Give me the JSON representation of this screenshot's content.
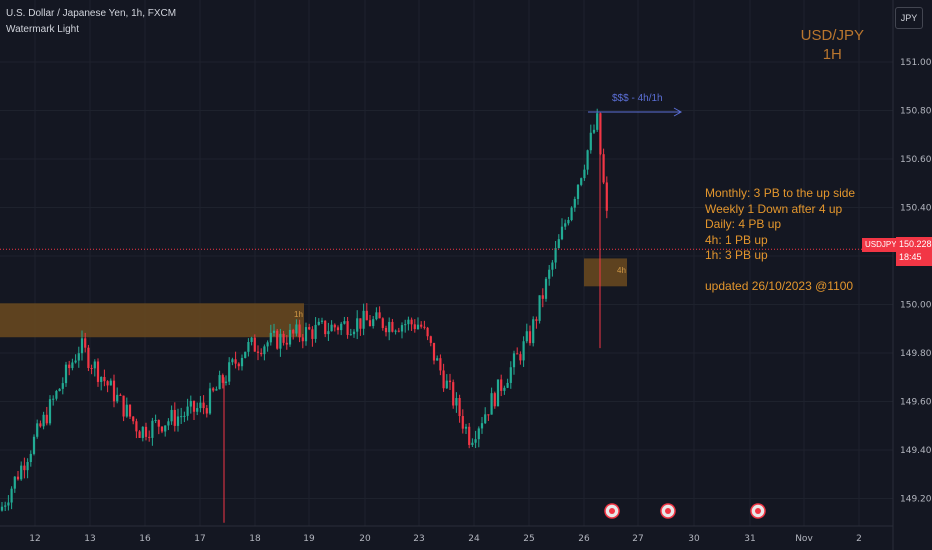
{
  "header": {
    "title": "U.S. Dollar / Japanese Yen, 1h, FXCM",
    "subtitle": "Watermark Light"
  },
  "watermark": {
    "symbol": "USD/JPY",
    "timeframe": "1H"
  },
  "currency_button": "JPY",
  "price_tag": {
    "symbol": "USDJPY",
    "price": "150.228",
    "countdown": "18:45"
  },
  "notes": [
    "Monthly: 3 PB to the up side",
    "Weekly 1 Down after 4 up",
    "Daily: 4 PB up",
    "4h: 1 PB up",
    "1h: 3 PB up"
  ],
  "updated": "updated 26/10/2023 @1100",
  "zone_labels": {
    "zone_1h": "1h",
    "zone_4h": "4h"
  },
  "arrow_label": "$$$ - 4h/1h",
  "colors": {
    "background": "#141722",
    "up": "#22ab94",
    "down": "#f23645",
    "zone": "#6b4a1f",
    "notes": "#e3962d"
  },
  "chart_data": {
    "type": "candlestick",
    "ylim": [
      149.1,
      151.16
    ],
    "y_ticks": [
      "151.000",
      "150.800",
      "150.600",
      "150.400",
      "150.200",
      "150.000",
      "149.800",
      "149.600",
      "149.400",
      "149.200"
    ],
    "x_ticks": [
      "12",
      "13",
      "16",
      "17",
      "18",
      "19",
      "20",
      "23",
      "24",
      "25",
      "26",
      "27",
      "30",
      "31",
      "Nov",
      "2"
    ],
    "current_price": 150.228,
    "zones": [
      {
        "label": "1h",
        "from_price": 149.865,
        "to_price": 150.005
      },
      {
        "label": "4h",
        "from_price": 150.075,
        "to_price": 150.19
      }
    ],
    "key_points": [
      {
        "date": "12",
        "price": 149.15
      },
      {
        "date": "13",
        "price": 149.83
      },
      {
        "date": "16",
        "price": 149.48
      },
      {
        "date": "17",
        "price": 149.58
      },
      {
        "date": "18",
        "price": 149.82
      },
      {
        "date": "19",
        "price": 149.88
      },
      {
        "date": "20",
        "price": 149.93
      },
      {
        "date": "23",
        "price": 149.92
      },
      {
        "date": "24",
        "price": 149.45
      },
      {
        "date": "25",
        "price": 149.87
      },
      {
        "date": "26",
        "price": 150.76
      },
      {
        "date": "26",
        "price": 150.23
      }
    ]
  }
}
